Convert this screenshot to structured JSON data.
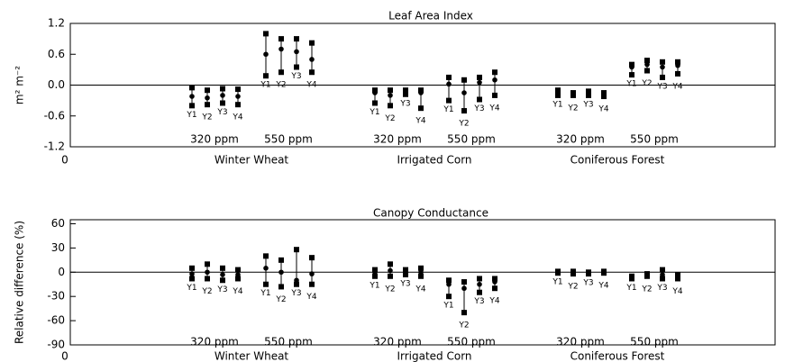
{
  "chart_data": [
    {
      "type": "range",
      "title": "Leaf Area Index",
      "y_label": "m² m⁻²",
      "ylim": [
        -1.2,
        1.2
      ],
      "yticks": [
        1.2,
        0.6,
        {
          "value": 0,
          "label": "0.0"
        },
        -0.6,
        -1.2
      ],
      "xticks": [
        0
      ],
      "groups": [
        {
          "name": "Winter Wheat",
          "subgroups": [
            {
              "name": "320 ppm",
              "labels": [
                "Y1",
                "Y2",
                "Y3",
                "Y4"
              ],
              "high": [
                -0.05,
                -0.1,
                -0.07,
                -0.08
              ],
              "mid": [
                -0.22,
                -0.25,
                -0.2,
                -0.22
              ],
              "low": [
                -0.4,
                -0.38,
                -0.35,
                -0.38
              ]
            },
            {
              "name": "550 ppm",
              "labels": [
                "Y1",
                "Y2",
                "Y3",
                "Y4"
              ],
              "high": [
                1.0,
                0.9,
                0.9,
                0.82
              ],
              "mid": [
                0.6,
                0.7,
                0.65,
                0.5
              ],
              "low": [
                0.18,
                0.25,
                0.35,
                0.25
              ]
            }
          ]
        },
        {
          "name": "Irrigated Corn",
          "subgroups": [
            {
              "name": "320 ppm",
              "labels": [
                "Y1",
                "Y2",
                "Y3",
                "Y4"
              ],
              "high": [
                -0.1,
                -0.1,
                -0.1,
                -0.1
              ],
              "mid": [
                -0.15,
                -0.2,
                -0.12,
                -0.15
              ],
              "low": [
                -0.35,
                -0.4,
                -0.18,
                -0.45
              ]
            },
            {
              "name": "550 ppm",
              "labels": [
                "Y1",
                "Y2",
                "Y3",
                "Y4"
              ],
              "high": [
                0.15,
                0.1,
                0.15,
                0.25
              ],
              "mid": [
                0.02,
                -0.15,
                0.05,
                0.1
              ],
              "low": [
                -0.3,
                -0.5,
                -0.28,
                -0.2
              ]
            }
          ]
        },
        {
          "name": "Coniferous Forest",
          "subgroups": [
            {
              "name": "320 ppm",
              "labels": [
                "Y1",
                "Y2",
                "Y3",
                "Y4"
              ],
              "high": [
                -0.1,
                -0.15,
                -0.12,
                -0.15
              ],
              "mid": [
                -0.15,
                -0.18,
                -0.15,
                -0.18
              ],
              "low": [
                -0.2,
                -0.2,
                -0.2,
                -0.22
              ]
            },
            {
              "name": "550 ppm",
              "labels": [
                "Y1",
                "Y2",
                "Y3",
                "Y4"
              ],
              "high": [
                0.4,
                0.48,
                0.45,
                0.45
              ],
              "mid": [
                0.35,
                0.4,
                0.35,
                0.38
              ],
              "low": [
                0.2,
                0.28,
                0.15,
                0.22
              ]
            }
          ]
        }
      ]
    },
    {
      "type": "range",
      "title": "Canopy Conductance",
      "y_label": "Relative difference (%)",
      "ylim": [
        -90,
        65
      ],
      "yticks": [
        60,
        30,
        0,
        -30,
        -60,
        -90
      ],
      "xticks": [
        0
      ],
      "groups": [
        {
          "name": "Winter Wheat",
          "subgroups": [
            {
              "name": "320 ppm",
              "labels": [
                "Y1",
                "Y2",
                "Y3",
                "Y4"
              ],
              "high": [
                5,
                10,
                5,
                3
              ],
              "mid": [
                -2,
                0,
                -3,
                -3
              ],
              "low": [
                -8,
                -8,
                -10,
                -8
              ]
            },
            {
              "name": "550 ppm",
              "labels": [
                "Y1",
                "Y2",
                "Y3",
                "Y4"
              ],
              "high": [
                20,
                15,
                28,
                18
              ],
              "mid": [
                5,
                0,
                -10,
                -2
              ],
              "low": [
                -15,
                -18,
                -15,
                -15
              ]
            }
          ]
        },
        {
          "name": "Irrigated Corn",
          "subgroups": [
            {
              "name": "320 ppm",
              "labels": [
                "Y1",
                "Y2",
                "Y3",
                "Y4"
              ],
              "high": [
                3,
                10,
                3,
                5
              ],
              "mid": [
                0,
                2,
                0,
                0
              ],
              "low": [
                -5,
                -5,
                -3,
                -5
              ]
            },
            {
              "name": "550 ppm",
              "labels": [
                "Y1",
                "Y2",
                "Y3",
                "Y4"
              ],
              "high": [
                -10,
                -12,
                -8,
                -8
              ],
              "mid": [
                -15,
                -20,
                -15,
                -12
              ],
              "low": [
                -30,
                -50,
                -25,
                -20
              ]
            }
          ]
        },
        {
          "name": "Coniferous Forest",
          "subgroups": [
            {
              "name": "320 ppm",
              "labels": [
                "Y1",
                "Y2",
                "Y3",
                "Y4"
              ],
              "high": [
                1,
                1,
                0,
                1
              ],
              "mid": [
                0,
                0,
                -1,
                0
              ],
              "low": [
                -1,
                -2,
                -2,
                -1
              ]
            },
            {
              "name": "550 ppm",
              "labels": [
                "Y1",
                "Y2",
                "Y3",
                "Y4"
              ],
              "high": [
                -5,
                -2,
                3,
                -3
              ],
              "mid": [
                -7,
                -3,
                -3,
                -5
              ],
              "low": [
                -8,
                -5,
                -8,
                -8
              ]
            }
          ]
        }
      ]
    }
  ]
}
